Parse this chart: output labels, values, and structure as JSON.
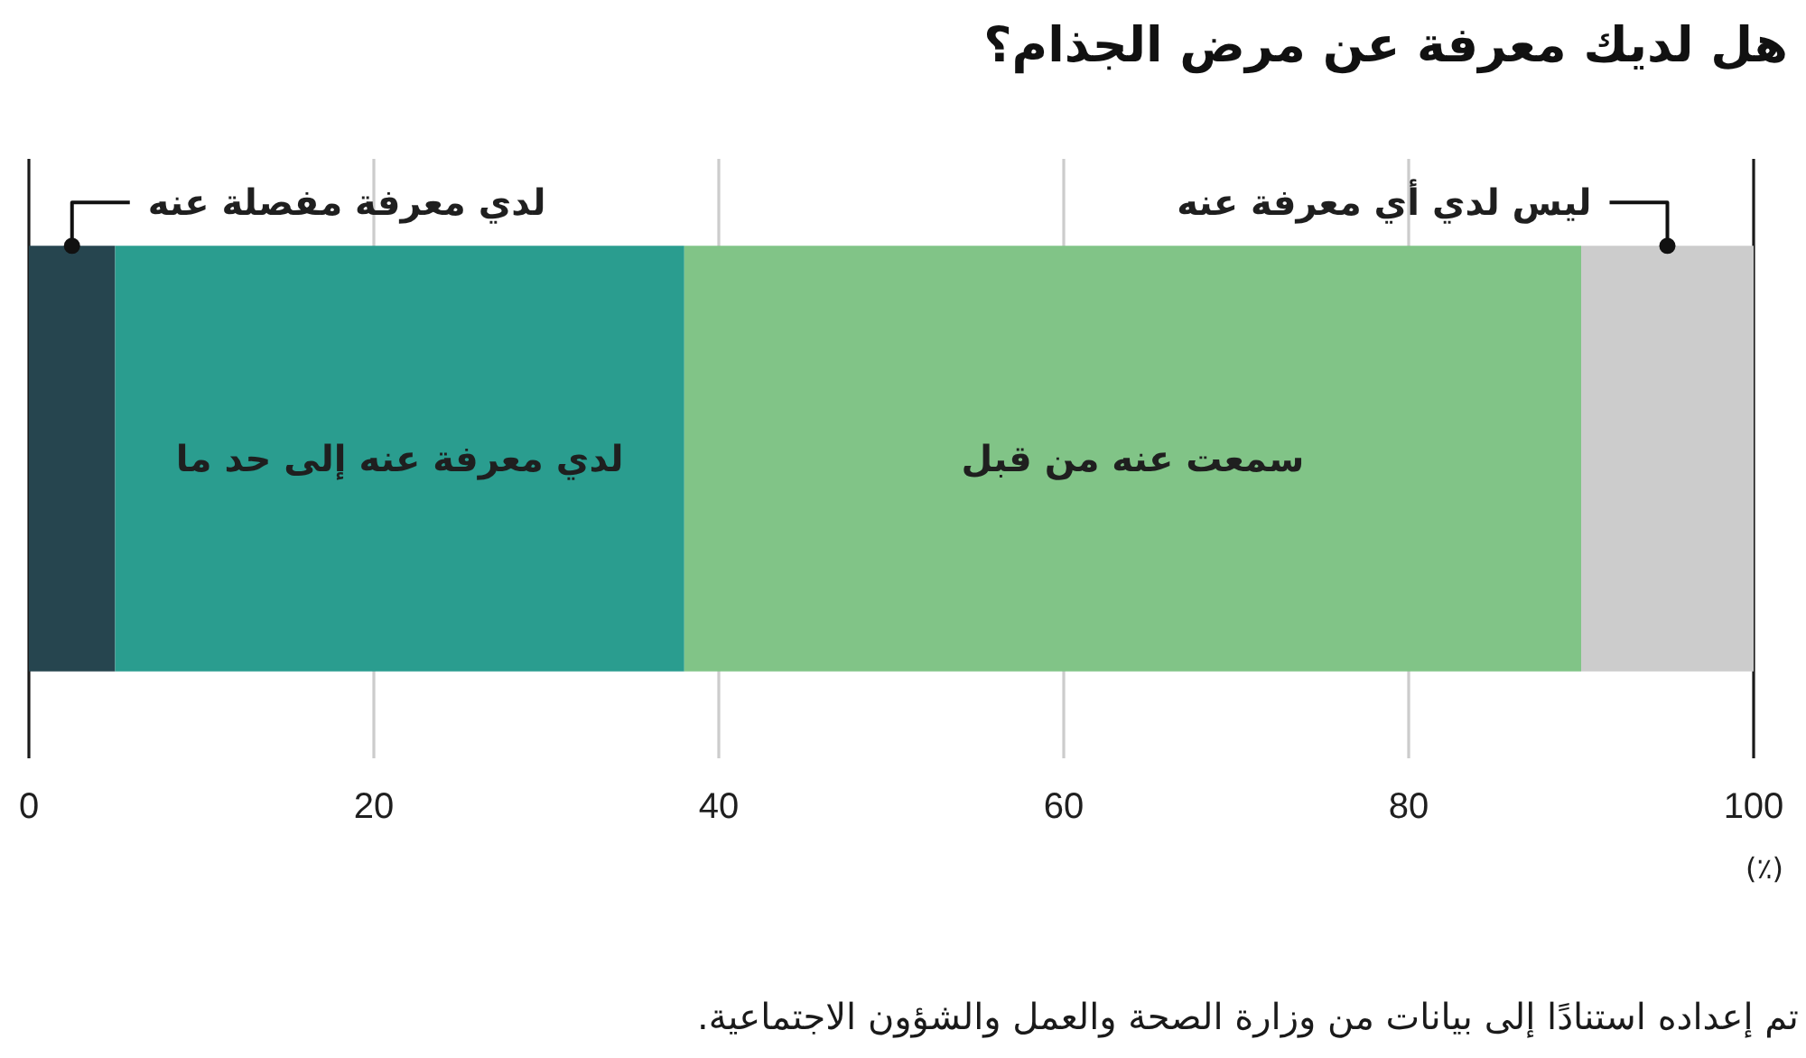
{
  "chart_data": {
    "type": "bar",
    "orientation": "horizontal",
    "stacked": true,
    "title": "هل لديك معرفة عن مرض الجذام؟",
    "xlabel": "(٪)",
    "categories": [
      null
    ],
    "series": [
      {
        "name": "لدي معرفة مفصلة عنه",
        "color": "#26454f",
        "values": [
          5
        ]
      },
      {
        "name": "لدي معرفة عنه إلى حد ما",
        "color": "#2a9d8f",
        "values": [
          33
        ]
      },
      {
        "name": "سمعت عنه من قبل",
        "color": "#81c487",
        "values": [
          52
        ]
      },
      {
        "name": "ليس لدي أي معرفة عنه",
        "color": "#cccccc",
        "values": [
          10
        ]
      }
    ],
    "xlim": [
      0,
      100
    ],
    "xticks": [
      0,
      20,
      40,
      60,
      80,
      100
    ],
    "grid": "x",
    "annotations": [
      "تم إعداده استنادًا إلى بيانات من وزارة الصحة والعمل والشؤون الاجتماعية."
    ]
  }
}
